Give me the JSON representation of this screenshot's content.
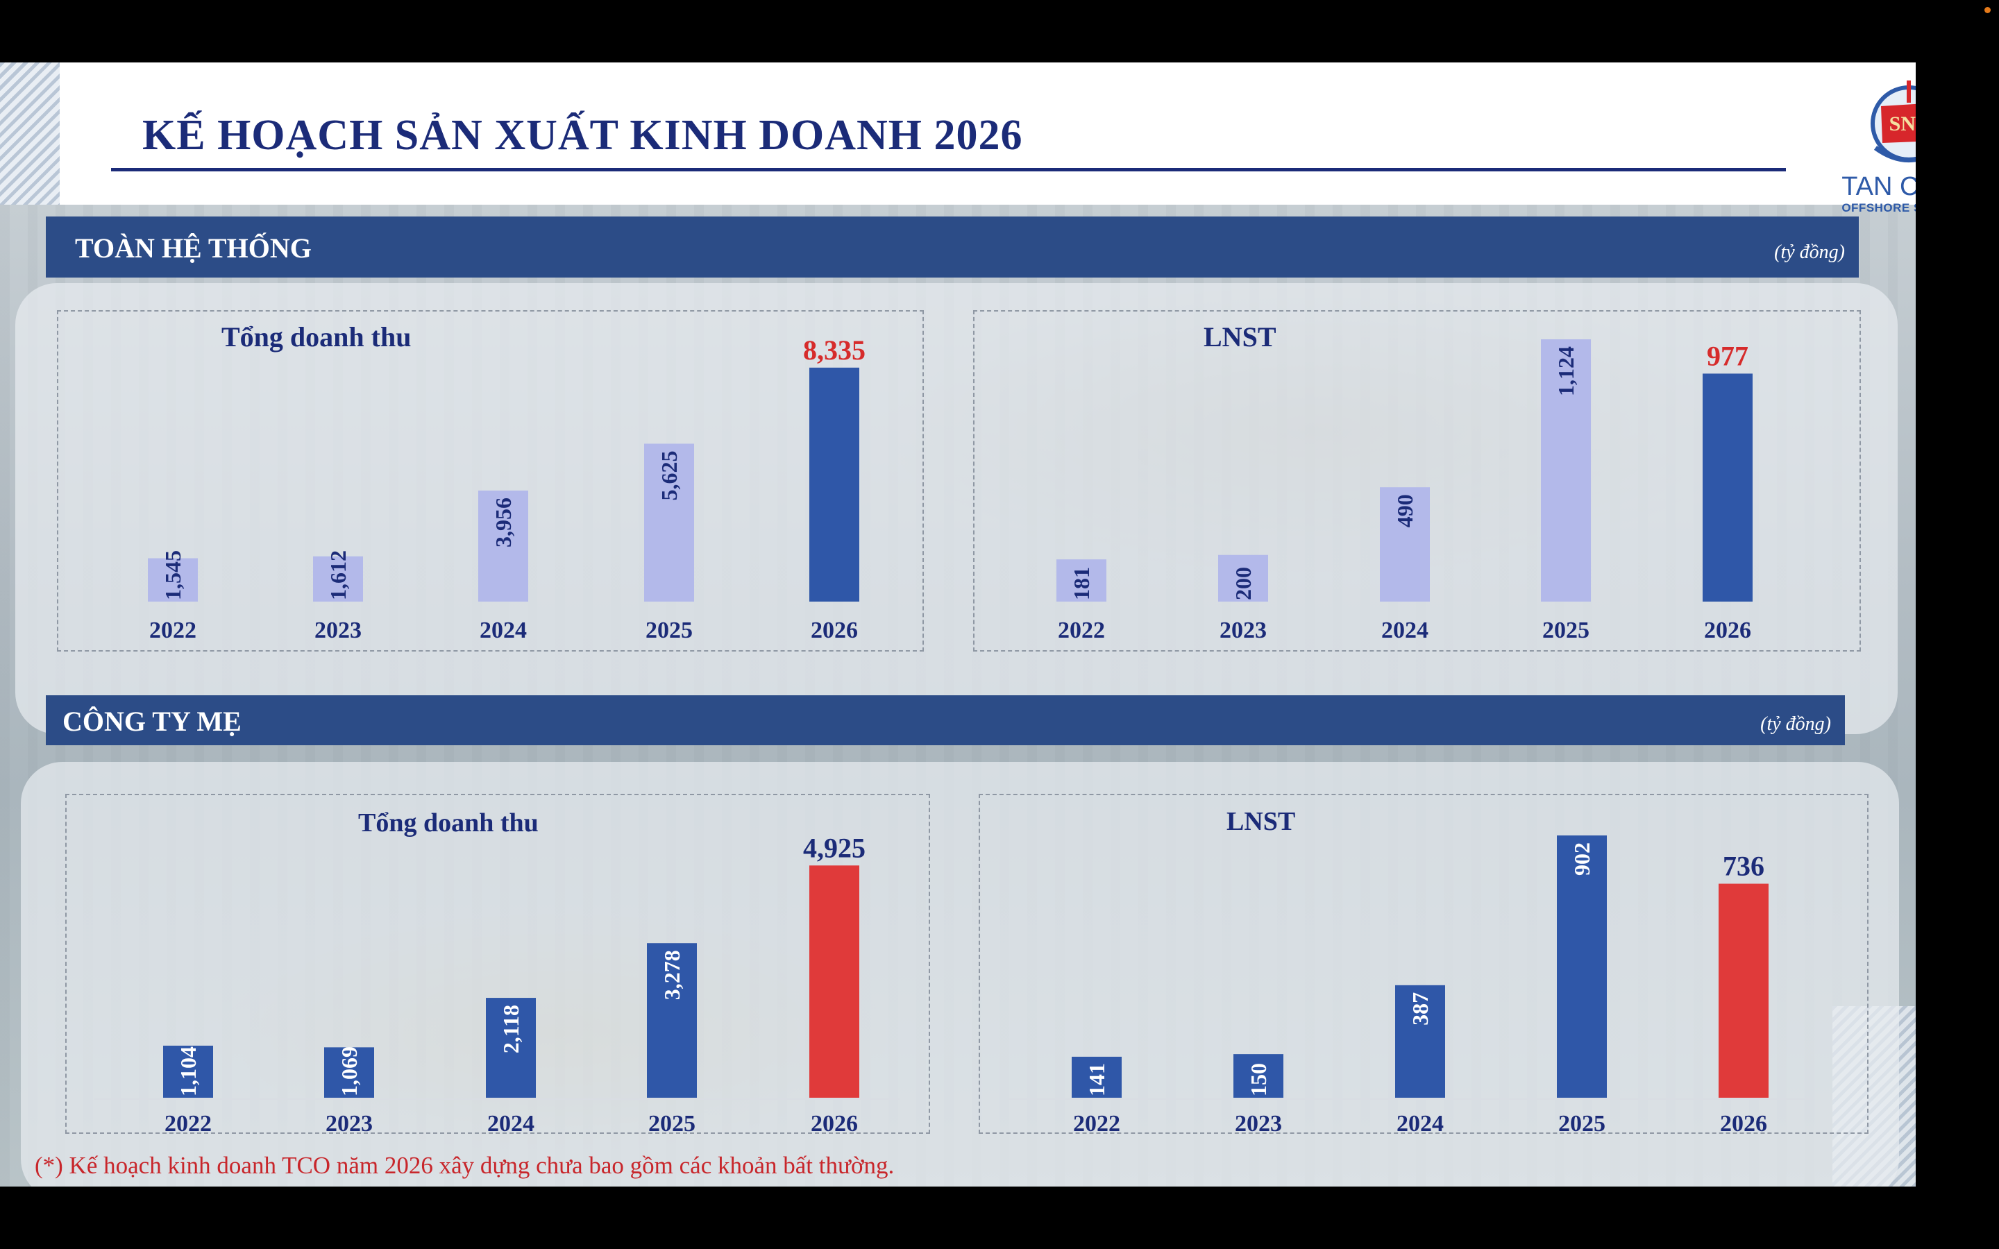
{
  "page": {
    "title": "KẾ HOẠCH SẢN XUẤT KINH DOANH 2026",
    "logo": {
      "badge": "SNP",
      "name": "TAN CANG",
      "sub": "OFFSHORE SERVICES"
    },
    "footnote": "(*) Kế hoạch kinh doanh TCO năm 2026 xây dựng chưa bao gồm các khoản bất thường."
  },
  "sections": [
    {
      "label": "TOÀN HỆ THỐNG",
      "unit": "(tỷ đồng)"
    },
    {
      "label": "CÔNG TY MẸ",
      "unit": "(tỷ đồng)"
    }
  ],
  "colors": {
    "navy": "#1b2b78",
    "band": "#2c4c87",
    "bar_light": "#b3b9ea",
    "bar_dark": "#2f57a8",
    "bar_red": "#e03a3a",
    "label_red": "#d62b2b"
  },
  "chart_data": [
    {
      "type": "bar",
      "title": "Tổng doanh thu",
      "categories": [
        "2022",
        "2023",
        "2024",
        "2025",
        "2026"
      ],
      "values": [
        1545,
        1612,
        3956,
        5625,
        8335
      ],
      "labels": [
        "1,545",
        "1,612",
        "3,956",
        "5,625",
        "8,335"
      ],
      "bar_colors": [
        "#b3b9ea",
        "#b3b9ea",
        "#b3b9ea",
        "#b3b9ea",
        "#2f57a8"
      ],
      "highlight_last": {
        "label_color": "#d62b2b"
      },
      "ylim": [
        0,
        8800
      ]
    },
    {
      "type": "bar",
      "title": "LNST",
      "categories": [
        "2022",
        "2023",
        "2024",
        "2025",
        "2026"
      ],
      "values": [
        181,
        200,
        490,
        1124,
        977
      ],
      "labels": [
        "181",
        "200",
        "490",
        "1,124",
        "977"
      ],
      "bar_colors": [
        "#b3b9ea",
        "#b3b9ea",
        "#b3b9ea",
        "#b3b9ea",
        "#2f57a8"
      ],
      "highlight_last": {
        "label_color": "#d62b2b"
      },
      "ylim": [
        0,
        1124
      ]
    },
    {
      "type": "bar",
      "title": "Tổng doanh thu",
      "categories": [
        "2022",
        "2023",
        "2024",
        "2025",
        "2026"
      ],
      "values": [
        1104,
        1069,
        2118,
        3278,
        4925
      ],
      "labels": [
        "1,104",
        "1,069",
        "2,118",
        "3,278",
        "4,925"
      ],
      "bar_colors": [
        "#2f57a8",
        "#2f57a8",
        "#2f57a8",
        "#2f57a8",
        "#e03a3a"
      ],
      "highlight_last": {
        "label_color": "#1b2b78"
      },
      "ylim": [
        0,
        5150
      ]
    },
    {
      "type": "bar",
      "title": "LNST",
      "categories": [
        "2022",
        "2023",
        "2024",
        "2025",
        "2026"
      ],
      "values": [
        141,
        150,
        387,
        902,
        736
      ],
      "labels": [
        "141",
        "150",
        "387",
        "902",
        "736"
      ],
      "bar_colors": [
        "#2f57a8",
        "#2f57a8",
        "#2f57a8",
        "#2f57a8",
        "#e03a3a"
      ],
      "highlight_last": {
        "label_color": "#1b2b78"
      },
      "ylim": [
        0,
        902
      ]
    }
  ]
}
